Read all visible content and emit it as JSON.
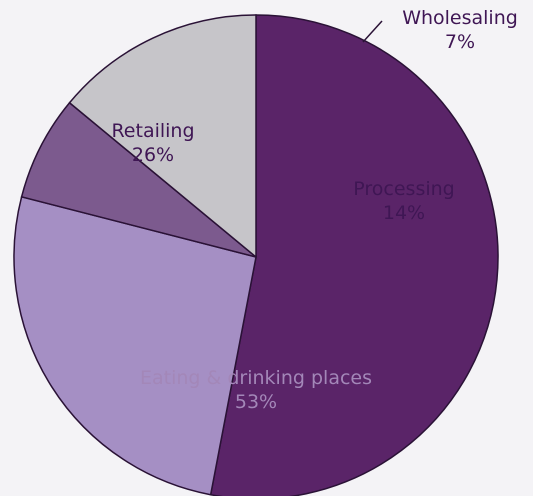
{
  "chart_data": {
    "type": "pie",
    "start_angle_deg": 90,
    "direction": "clockwise",
    "slices": [
      {
        "label": "Eating & drinking places",
        "value": 53,
        "value_label": "53%",
        "color": "#5a2468",
        "text_color": "#a387b8"
      },
      {
        "label": "Retailing",
        "value": 26,
        "value_label": "26%",
        "color": "#a58fc4",
        "text_color": "#3f1654"
      },
      {
        "label": "Wholesaling",
        "value": 7,
        "value_label": "7%",
        "color": "#7c5a8e",
        "text_color": "#3f1654"
      },
      {
        "label": "Processing",
        "value": 14,
        "value_label": "14%",
        "color": "#c6c5c9",
        "text_color": "#3f1654"
      }
    ]
  }
}
